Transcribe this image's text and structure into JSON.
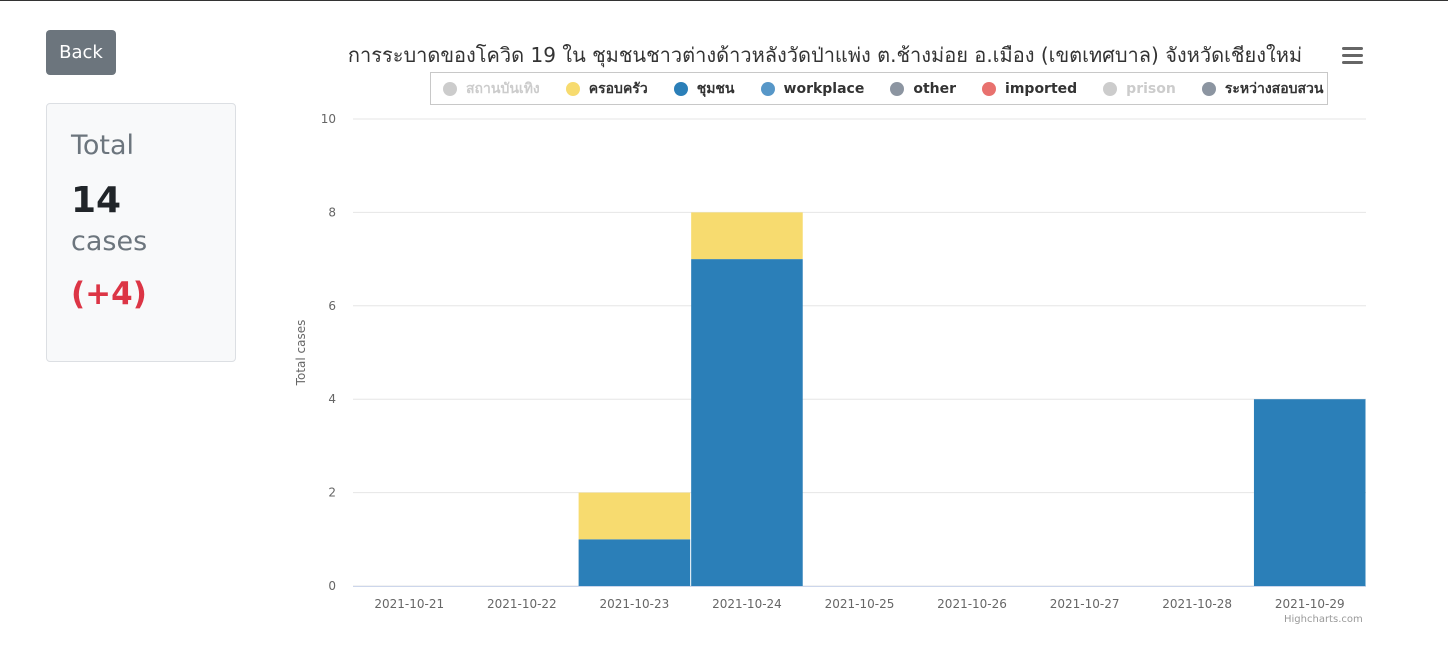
{
  "back_label": "Back",
  "summary": {
    "label": "Total",
    "count": "14",
    "unit": "cases",
    "delta": "(+4)"
  },
  "credits": "Highcharts.com",
  "chart_data": {
    "type": "bar",
    "stacked": true,
    "title": "การระบาดของโควิด 19 ใน ชุมชนชาวต่างด้าวหลังวัดป่าแพ่ง ต.ช้างม่อย อ.เมือง (เขตเทศบาล) จังหวัดเชียงใหม่",
    "xlabel": "",
    "ylabel": "Total cases",
    "ylim": [
      0,
      10
    ],
    "yticks": [
      0,
      2,
      4,
      6,
      8,
      10
    ],
    "grid": true,
    "legend_position": "top",
    "categories": [
      "2021-10-21",
      "2021-10-22",
      "2021-10-23",
      "2021-10-24",
      "2021-10-25",
      "2021-10-26",
      "2021-10-27",
      "2021-10-28",
      "2021-10-29"
    ],
    "series": [
      {
        "name": "สถานบันเทิง",
        "color": "#cccccc",
        "visible": false,
        "values": [
          0,
          0,
          0,
          0,
          0,
          0,
          0,
          0,
          0
        ]
      },
      {
        "name": "ครอบครัว",
        "color": "#f7db6f",
        "visible": true,
        "values": [
          0,
          0,
          1,
          1,
          0,
          0,
          0,
          0,
          0
        ]
      },
      {
        "name": "ชุมชน",
        "color": "#2b7fb8",
        "visible": true,
        "values": [
          0,
          0,
          1,
          7,
          0,
          0,
          0,
          0,
          4
        ]
      },
      {
        "name": "workplace",
        "color": "#5797c8",
        "visible": true,
        "values": [
          0,
          0,
          0,
          0,
          0,
          0,
          0,
          0,
          0
        ]
      },
      {
        "name": "other",
        "color": "#8c95a1",
        "visible": true,
        "values": [
          0,
          0,
          0,
          0,
          0,
          0,
          0,
          0,
          0
        ]
      },
      {
        "name": "imported",
        "color": "#e8716e",
        "visible": true,
        "values": [
          0,
          0,
          0,
          0,
          0,
          0,
          0,
          0,
          0
        ]
      },
      {
        "name": "prison",
        "color": "#cccccc",
        "visible": false,
        "values": [
          0,
          0,
          0,
          0,
          0,
          0,
          0,
          0,
          0
        ]
      },
      {
        "name": "ระหว่างสอบสวน",
        "color": "#8c95a1",
        "visible": true,
        "values": [
          0,
          0,
          0,
          0,
          0,
          0,
          0,
          0,
          0
        ]
      }
    ]
  }
}
